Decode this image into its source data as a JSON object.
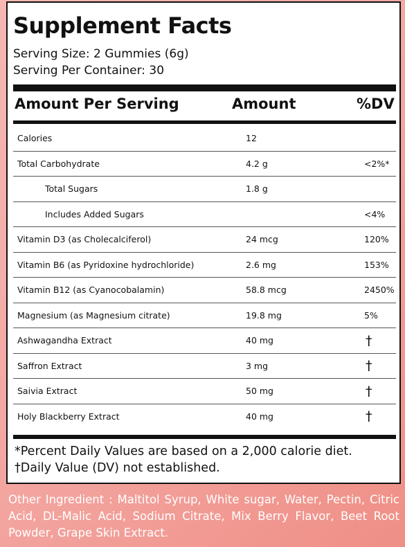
{
  "title": "Supplement Facts",
  "serving_size": "Serving Size: 2 Gummies (6g)",
  "servings_per_container": "Serving Per Container: 30",
  "header": {
    "col1": "Amount Per Serving",
    "col2": "Amount",
    "col3": "%DV"
  },
  "rows": [
    {
      "name": "Calories",
      "amount": "12",
      "dv": ""
    },
    {
      "name": "Total Carbohydrate",
      "amount": "4.2 g",
      "dv": "<2%*"
    },
    {
      "name": "Total Sugars",
      "amount": "1.8 g",
      "dv": ""
    },
    {
      "name": "Includes Added Sugars",
      "amount": "",
      "dv": "<4%"
    },
    {
      "name": "Vitamin D3 (as Cholecalciferol)",
      "amount": "24 mcg",
      "dv": "120%"
    },
    {
      "name": "Vitamin B6 (as Pyridoxine hydrochloride)",
      "amount": "2.6 mg",
      "dv": "153%"
    },
    {
      "name": "Vitamin B12 (as Cyanocobalamin)",
      "amount": "58.8 mcg",
      "dv": "2450%"
    },
    {
      "name": "Magnesium (as Magnesium citrate)",
      "amount": "19.8 mg",
      "dv": "5%"
    },
    {
      "name": "Ashwagandha Extract",
      "amount": "40 mg",
      "dv": "†"
    },
    {
      "name": "Saffron Extract",
      "amount": "3 mg",
      "dv": "†"
    },
    {
      "name": "Saivia Extract",
      "amount": "50 mg",
      "dv": "†"
    },
    {
      "name": "Holy Blackberry Extract",
      "amount": "40 mg",
      "dv": "†"
    }
  ],
  "footnote_1": "*Percent Daily Values are based on a 2,000 calorie diet.",
  "footnote_2": "†Daily Value (DV) not established.",
  "other_ingredients": "Other Ingredient : Maltitol Syrup, White sugar, Water, Pectin, Citric Acid, DL-Malic Acid, Sodium Citrate, Mix Berry Flavor, Beet Root Powder, Grape Skin Extract."
}
